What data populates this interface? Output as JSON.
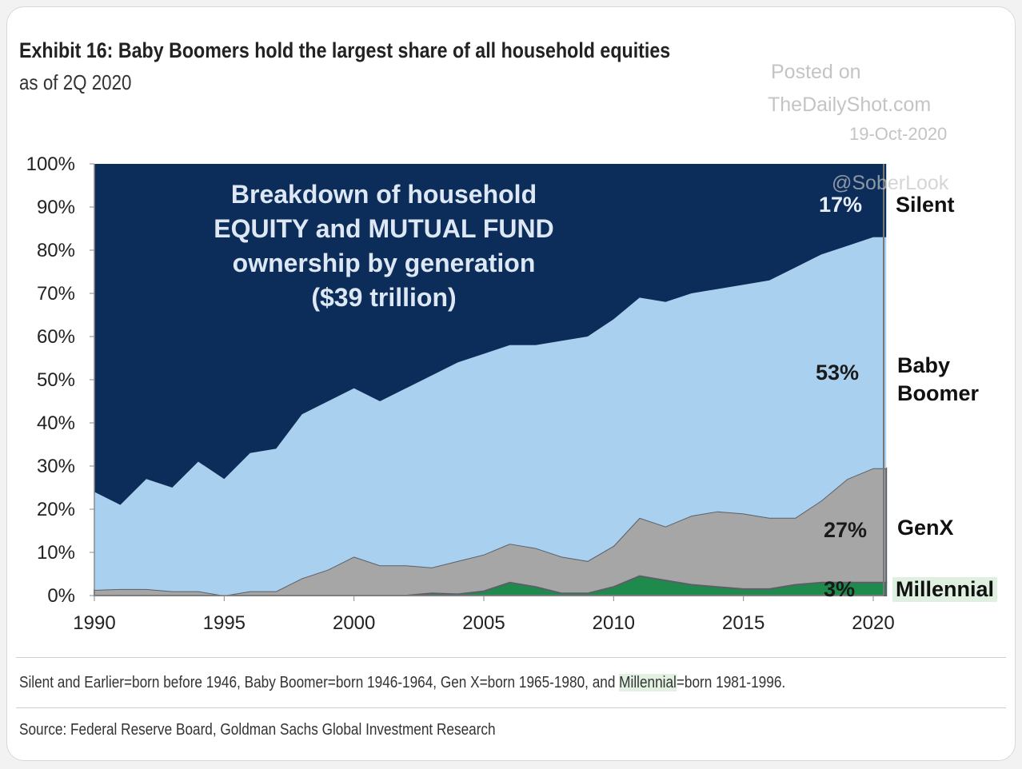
{
  "header": {
    "title": "Exhibit 16: Baby Boomers hold the largest share of all household equities",
    "subtitle": "as of 2Q 2020"
  },
  "watermark": {
    "line1": "Posted on",
    "line2": "TheDailyShot.com",
    "line3": "19-Oct-2020",
    "handle": "@SoberLook"
  },
  "footnote": {
    "pre": "Silent and Earlier=born before 1946, Baby Boomer=born 1946-1964, Gen X=born 1965-1980, and ",
    "highlight": "Millennial",
    "post": "=born 1981-1996."
  },
  "source": "Source: Federal Reserve Board, Goldman Sachs Global Investment Research",
  "chart_data": {
    "type": "area",
    "stacked": true,
    "title": "Breakdown of household EQUITY and MUTUAL FUND ownership by generation ($39 trillion)",
    "title_lines": [
      "Breakdown of household",
      "EQUITY and MUTUAL FUND",
      "ownership by generation",
      "($39 trillion)"
    ],
    "xlabel": "",
    "ylabel": "",
    "xlim": [
      1990,
      2020.5
    ],
    "ylim": [
      0,
      100
    ],
    "x_ticks": [
      "1990",
      "1995",
      "2000",
      "2005",
      "2010",
      "2015",
      "2020"
    ],
    "y_ticks": [
      "0%",
      "10%",
      "20%",
      "30%",
      "40%",
      "50%",
      "60%",
      "70%",
      "80%",
      "90%",
      "100%"
    ],
    "x": [
      1990,
      1991,
      1992,
      1993,
      1994,
      1995,
      1996,
      1997,
      1998,
      1999,
      2000,
      2001,
      2002,
      2003,
      2004,
      2005,
      2006,
      2007,
      2008,
      2009,
      2010,
      2011,
      2012,
      2013,
      2014,
      2015,
      2016,
      2017,
      2018,
      2019,
      2020
    ],
    "series": [
      {
        "name": "Millennial",
        "color": "#1e8a4c",
        "end_label": "3%",
        "values": [
          0,
          0,
          0,
          0,
          0,
          0,
          0,
          0,
          0,
          0,
          0,
          0,
          0,
          0.5,
          0.3,
          1,
          3,
          2,
          0.5,
          0.5,
          2,
          4.5,
          3.5,
          2.5,
          2,
          1.5,
          1.5,
          2.5,
          3,
          3,
          3
        ]
      },
      {
        "name": "GenX",
        "color": "#a6a6a6",
        "end_label": "27%",
        "values": [
          1.3,
          1.5,
          1.5,
          1,
          1,
          0,
          1,
          1,
          4,
          6,
          9,
          7,
          7,
          6,
          7.7,
          8.5,
          9,
          9,
          8.5,
          7.5,
          9.5,
          13.5,
          12.5,
          16,
          17.5,
          17.5,
          16.5,
          15.5,
          19,
          24,
          26.5
        ]
      },
      {
        "name": "Baby Boomer",
        "color": "#aad0f0",
        "end_label": "53%",
        "values": [
          22.7,
          19.5,
          25.5,
          24,
          30,
          27,
          32,
          33,
          38,
          39,
          39,
          38,
          41,
          44.5,
          46,
          46.5,
          46,
          47,
          50,
          52,
          52.5,
          51,
          52,
          51.5,
          51.5,
          53,
          55,
          58,
          57,
          54,
          53.5
        ]
      },
      {
        "name": "Silent",
        "color": "#0c2d5a",
        "end_label": "17%",
        "values": [
          76,
          79,
          73,
          75,
          69,
          73,
          67,
          66,
          58,
          55,
          52,
          55,
          52,
          49,
          46,
          44,
          42,
          42,
          41,
          40,
          36,
          31,
          32,
          30,
          29,
          28,
          27,
          24,
          21,
          19,
          17
        ]
      }
    ],
    "legend": "right"
  }
}
